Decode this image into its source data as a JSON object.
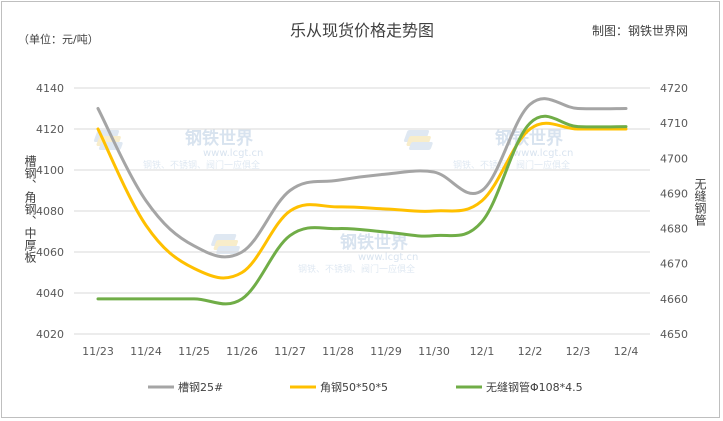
{
  "chart_data": {
    "type": "line",
    "title": "乐从现货价格走势图",
    "unit_label": "（单位：元/吨）",
    "source_label": "制图：钢铁世界网",
    "y_left_label": "槽钢、角钢、中厚板",
    "y_right_label": "无缝钢管",
    "categories": [
      "11/23",
      "11/24",
      "11/25",
      "11/26",
      "11/27",
      "11/28",
      "11/29",
      "11/30",
      "12/1",
      "12/2",
      "12/3",
      "12/4"
    ],
    "y_left": {
      "min": 4020,
      "max": 4140,
      "ticks": [
        "4020",
        "4040",
        "4060",
        "4080",
        "4100",
        "4120",
        "4140"
      ]
    },
    "y_right": {
      "min": 4650,
      "max": 4720,
      "ticks": [
        "4650",
        "4660",
        "4670",
        "4680",
        "4690",
        "4700",
        "4710",
        "4720"
      ]
    },
    "series": [
      {
        "name": "槽钢25#",
        "axis": "left",
        "color": "#a5a5a5",
        "values": [
          4130,
          4085,
          4063,
          4060,
          4090,
          4095,
          4098,
          4099,
          4090,
          4132,
          4130,
          4130
        ]
      },
      {
        "name": "角钢50*50*5",
        "axis": "left",
        "color": "#ffc000",
        "values": [
          4120,
          4073,
          4052,
          4050,
          4080,
          4082,
          4081,
          4080,
          4085,
          4120,
          4120,
          4120
        ]
      },
      {
        "name": "无缝钢管Φ108*4.5",
        "axis": "right",
        "color": "#70ad47",
        "values": [
          4660,
          4660,
          4660,
          4660,
          4678,
          4680,
          4679,
          4678,
          4682,
          4710,
          4709,
          4709
        ]
      }
    ],
    "legend_position": "bottom",
    "grid": "horizontal"
  },
  "watermark": {
    "brand": "钢铁世界",
    "url": "www.lcgt.cn",
    "slogan": "钢铁、不锈钢、阀门一应俱全"
  }
}
